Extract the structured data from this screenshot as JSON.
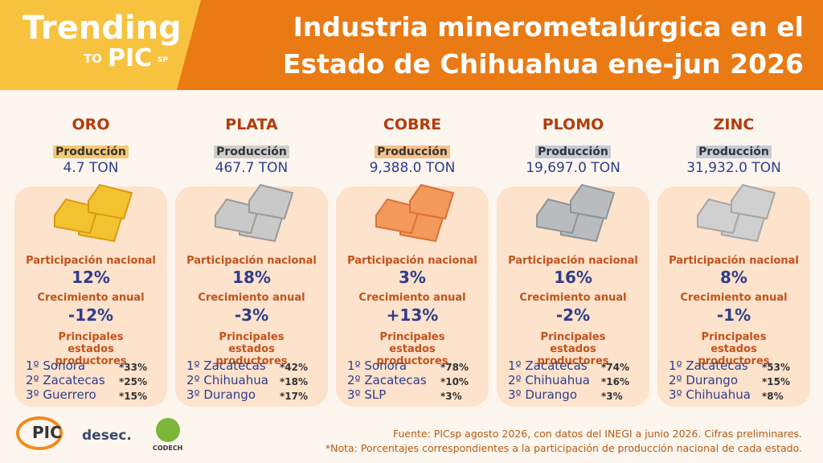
{
  "header": {
    "brand": "Trending",
    "brand_to": "TO",
    "brand_pic": "PIC",
    "brand_sp": "SP",
    "title_line1": "Industria minerometalúrgica en el",
    "title_line2": "Estado de Chihuahua ene-jun 2026"
  },
  "metals": [
    {
      "name": "ORO",
      "production_label": "Producción",
      "production": "4.7 TON",
      "participation_label": "Participación nacional",
      "participation": "12%",
      "growth_label": "Crecimiento anual",
      "growth": "-12%",
      "states_label": "Principales estados productores",
      "states": [
        {
          "state": "1º Sonora",
          "share": "*33%"
        },
        {
          "state": "2º Zacatecas",
          "share": "*25%"
        },
        {
          "state": "3º Guerrero",
          "share": "*15%"
        }
      ]
    },
    {
      "name": "PLATA",
      "production_label": "Producción",
      "production": "467.7 TON",
      "participation_label": "Participación nacional",
      "participation": "18%",
      "growth_label": "Crecimiento anual",
      "growth": "-3%",
      "states_label": "Principales estados productores",
      "states": [
        {
          "state": "1º Zacatecas",
          "share": "*42%"
        },
        {
          "state": "2º Chihuahua",
          "share": "*18%"
        },
        {
          "state": "3º Durango",
          "share": "*17%"
        }
      ]
    },
    {
      "name": "COBRE",
      "production_label": "Producción",
      "production": "9,388.0 TON",
      "participation_label": "Participación nacional",
      "participation": "3%",
      "growth_label": "Crecimiento anual",
      "growth": "+13%",
      "states_label": "Principales estados productores",
      "states": [
        {
          "state": "1º Sonora",
          "share": "*78%"
        },
        {
          "state": "2º Zacatecas",
          "share": "*10%"
        },
        {
          "state": "3º SLP",
          "share": "*3%"
        }
      ]
    },
    {
      "name": "PLOMO",
      "production_label": "Producción",
      "production": "19,697.0 TON",
      "participation_label": "Participación nacional",
      "participation": "16%",
      "growth_label": "Crecimiento anual",
      "growth": "-2%",
      "states_label": "Principales estados productores",
      "states": [
        {
          "state": "1º Zacatecas",
          "share": "*74%"
        },
        {
          "state": "2º Chihuahua",
          "share": "*16%"
        },
        {
          "state": "3º Durango",
          "share": "*3%"
        }
      ]
    },
    {
      "name": "ZINC",
      "production_label": "Producción",
      "production": "31,932.0 TON",
      "participation_label": "Participación nacional",
      "participation": "8%",
      "growth_label": "Crecimiento anual",
      "growth": "-1%",
      "states_label": "Principales estados productores",
      "states": [
        {
          "state": "1º Zacatecas",
          "share": "*53%"
        },
        {
          "state": "2º Durango",
          "share": "*15%"
        },
        {
          "state": "3º Chihuahua",
          "share": "*8%"
        }
      ]
    }
  ],
  "footer": {
    "source": "Fuente: PICsp agosto 2026, con datos del INEGI a junio 2026. Cifras preliminares.",
    "note": "*Nota: Porcentajes correspondientes a la participación de producción nacional de cada estado.",
    "logo_pic": "PIC",
    "logo_desec": "desec.",
    "logo_codech": "CODECH"
  }
}
